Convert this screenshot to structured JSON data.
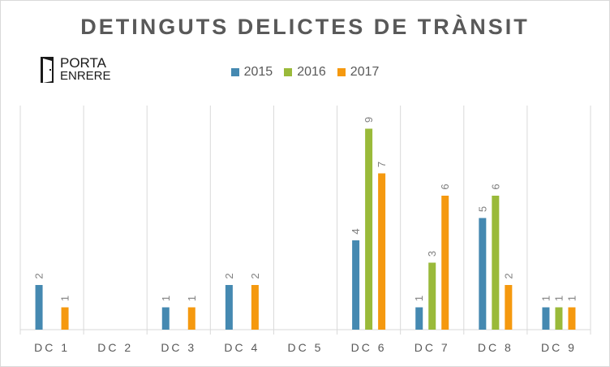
{
  "title": "DETINGUTS  DELICTES  DE TRÀNSIT",
  "logo": {
    "line1": "PORTA",
    "line2": "ENRERE"
  },
  "chart_data": {
    "type": "bar",
    "title": "DETINGUTS  DELICTES  DE TRÀNSIT",
    "categories": [
      "DC 1",
      "DC 2",
      "DC 3",
      "DC 4",
      "DC 5",
      "DC 6",
      "DC 7",
      "DC 8",
      "DC 9"
    ],
    "series": [
      {
        "name": "2015",
        "color": "#4589b1",
        "values": [
          2,
          0,
          1,
          2,
          0,
          4,
          1,
          5,
          1
        ]
      },
      {
        "name": "2016",
        "color": "#9aba3a",
        "values": [
          0,
          0,
          0,
          0,
          0,
          9,
          3,
          6,
          1
        ]
      },
      {
        "name": "2017",
        "color": "#f5990f",
        "values": [
          1,
          0,
          1,
          2,
          0,
          7,
          6,
          2,
          1
        ]
      }
    ],
    "ylim": [
      0,
      10
    ],
    "grid": "vertical category separators",
    "legend_position": "top-center",
    "data_labels": true
  }
}
